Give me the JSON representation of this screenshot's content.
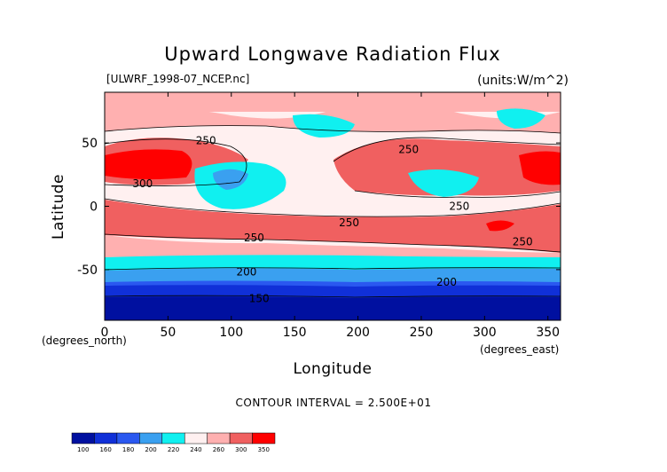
{
  "title": "Upward Longwave Radiation Flux",
  "dataset_label": "[ULWRF_1998-07_NCEP.nc]",
  "units_label": "(units:W/m^2)",
  "contour_interval": "CONTOUR INTERVAL = 2.500E+01",
  "x_axis": {
    "label": "Longitude",
    "unit_note": "(degrees_east)",
    "ticks": [
      "0",
      "50",
      "100",
      "150",
      "200",
      "250",
      "300",
      "350"
    ],
    "tick_values": [
      0,
      50,
      100,
      150,
      200,
      250,
      300,
      350
    ],
    "range": [
      0,
      360
    ]
  },
  "y_axis": {
    "label": "Latitude",
    "unit_note": "(degrees_north)",
    "ticks": [
      "50",
      "0",
      "-50"
    ],
    "tick_values": [
      50,
      0,
      -50
    ],
    "range": [
      -90,
      90
    ]
  },
  "colorbar": {
    "labels": [
      "100",
      "160",
      "180",
      "200",
      "220",
      "240",
      "260",
      "300",
      "350"
    ],
    "colors": [
      "#0010a0",
      "#1030d8",
      "#2a58f0",
      "#3aa0f0",
      "#10f0f0",
      "#fff0f0",
      "#ffb0b0",
      "#f06060",
      "#ff0000"
    ]
  },
  "chart_data": {
    "type": "heatmap",
    "title": "Upward Longwave Radiation Flux",
    "xlabel": "Longitude",
    "ylabel": "Latitude",
    "xlim": [
      0,
      360
    ],
    "ylim": [
      -90,
      90
    ],
    "levels": [
      100,
      160,
      180,
      200,
      220,
      240,
      260,
      300,
      350
    ],
    "contour_labels": [
      {
        "lon": 80,
        "lat": 52,
        "text": "250"
      },
      {
        "lon": 30,
        "lat": 18,
        "text": "300"
      },
      {
        "lon": 240,
        "lat": 45,
        "text": "250"
      },
      {
        "lon": 193,
        "lat": -13,
        "text": "250"
      },
      {
        "lon": 280,
        "lat": 0,
        "text": "250"
      },
      {
        "lon": 118,
        "lat": -25,
        "text": "250"
      },
      {
        "lon": 330,
        "lat": -28,
        "text": "250"
      },
      {
        "lon": 112,
        "lat": -52,
        "text": "200"
      },
      {
        "lon": 270,
        "lat": -60,
        "text": "200"
      },
      {
        "lon": 122,
        "lat": -73,
        "text": "150"
      }
    ],
    "bands": [
      {
        "lat_from": 90,
        "lat_to": 75,
        "value_range": "240-260"
      },
      {
        "lat_from": 75,
        "lat_to": 60,
        "value_range": "220-260"
      },
      {
        "lat_from": 60,
        "lat_to": 20,
        "value_range": "260-350"
      },
      {
        "lat_from": 20,
        "lat_to": 0,
        "value_range": "220-260"
      },
      {
        "lat_from": 0,
        "lat_to": -30,
        "value_range": "260-300"
      },
      {
        "lat_from": -30,
        "lat_to": -45,
        "value_range": "240-260"
      },
      {
        "lat_from": -45,
        "lat_to": -55,
        "value_range": "200-220"
      },
      {
        "lat_from": -55,
        "lat_to": -65,
        "value_range": "180-200"
      },
      {
        "lat_from": -65,
        "lat_to": -75,
        "value_range": "160-180"
      },
      {
        "lat_from": -75,
        "lat_to": -90,
        "value_range": "100-160"
      }
    ]
  }
}
